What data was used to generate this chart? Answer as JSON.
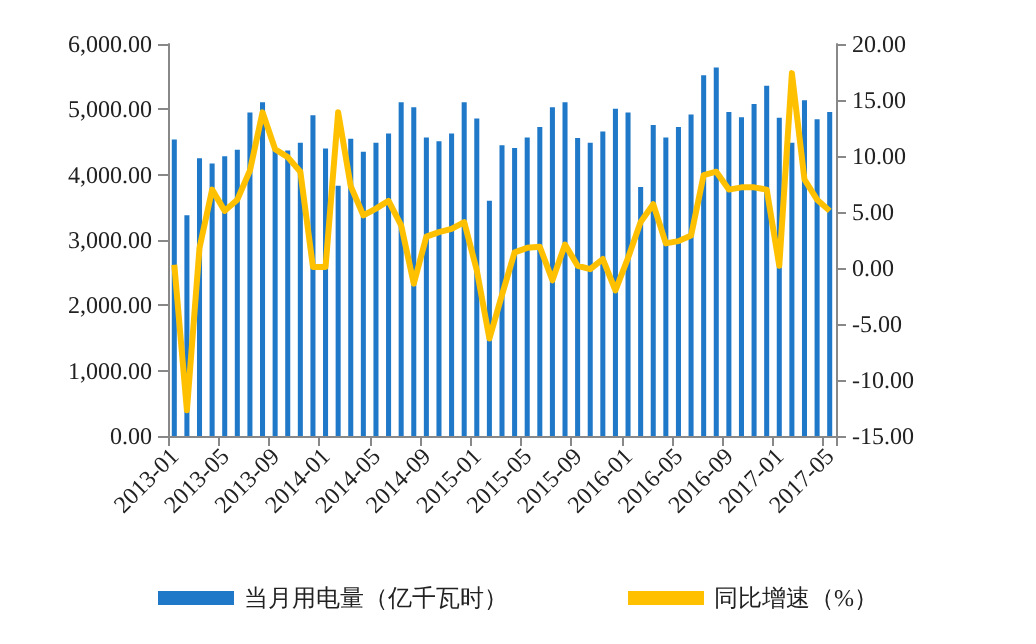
{
  "chart_data": {
    "type": "bar",
    "categories": [
      "2013-01",
      null,
      null,
      null,
      "2013-05",
      null,
      null,
      null,
      "2013-09",
      null,
      null,
      null,
      "2014-01",
      null,
      null,
      null,
      "2014-05",
      null,
      null,
      null,
      "2014-09",
      null,
      null,
      null,
      "2015-01",
      null,
      null,
      null,
      "2015-05",
      null,
      null,
      null,
      "2015-09",
      null,
      null,
      null,
      "2016-01",
      null,
      null,
      null,
      "2016-05",
      null,
      null,
      null,
      "2016-09",
      null,
      null,
      null,
      "2017-01",
      null,
      null,
      null,
      "2017-05"
    ],
    "series": [
      {
        "name": "当月用电量（亿千瓦时）",
        "color": "#1f78c8",
        "values": [
          4540,
          3380,
          4250,
          4170,
          4280,
          4380,
          4950,
          5110,
          4380,
          4370,
          4490,
          4910,
          4400,
          3830,
          4550,
          4350,
          4490,
          4630,
          5110,
          5030,
          4570,
          4510,
          4630,
          5110,
          4860,
          3600,
          4450,
          4410,
          4570,
          4730,
          5030,
          5110,
          4560,
          4490,
          4660,
          5010,
          4950,
          3810,
          4760,
          4570,
          4730,
          4920,
          5520,
          5640,
          4960,
          4880,
          5080,
          5360,
          4870,
          4490,
          5140,
          4850,
          4960
        ]
      },
      {
        "name": "同比增速（%）",
        "type": "line",
        "axis": "y2",
        "color": "#ffc000",
        "values": [
          0.3,
          -12.7,
          1.8,
          7.0,
          5.1,
          6.1,
          8.7,
          13.9,
          10.6,
          9.9,
          8.6,
          0.1,
          0.1,
          13.9,
          7.3,
          4.7,
          5.3,
          6.0,
          3.8,
          -1.4,
          2.8,
          3.2,
          3.5,
          4.1,
          -0.2,
          -6.3,
          -2.4,
          1.4,
          1.8,
          1.9,
          -1.1,
          2.1,
          0.2,
          -0.1,
          0.8,
          -2.0,
          0.9,
          4.1,
          5.7,
          2.2,
          2.4,
          2.9,
          8.3,
          8.6,
          7.0,
          7.2,
          7.2,
          7.0,
          0.2,
          17.4,
          7.9,
          6.1,
          5.1
        ]
      }
    ],
    "ylim": [
      0,
      6000
    ],
    "yticks": [
      {
        "value": 0,
        "label": "0.00"
      },
      {
        "value": 1000,
        "label": "1,000.00"
      },
      {
        "value": 2000,
        "label": "2,000.00"
      },
      {
        "value": 3000,
        "label": "3,000.00"
      },
      {
        "value": 4000,
        "label": "4,000.00"
      },
      {
        "value": 5000,
        "label": "5,000.00"
      },
      {
        "value": 6000,
        "label": "6,000.00"
      }
    ],
    "y2lim": [
      -15,
      20
    ],
    "y2ticks": [
      {
        "value": -15,
        "label": "-15.00"
      },
      {
        "value": -10,
        "label": "-10.00"
      },
      {
        "value": -5,
        "label": "-5.00"
      },
      {
        "value": 0,
        "label": "0.00"
      },
      {
        "value": 5,
        "label": "5.00"
      },
      {
        "value": 10,
        "label": "10.00"
      },
      {
        "value": 15,
        "label": "15.00"
      },
      {
        "value": 20,
        "label": "20.00"
      }
    ],
    "grid": false,
    "legend": "bottom",
    "marker": "none"
  }
}
